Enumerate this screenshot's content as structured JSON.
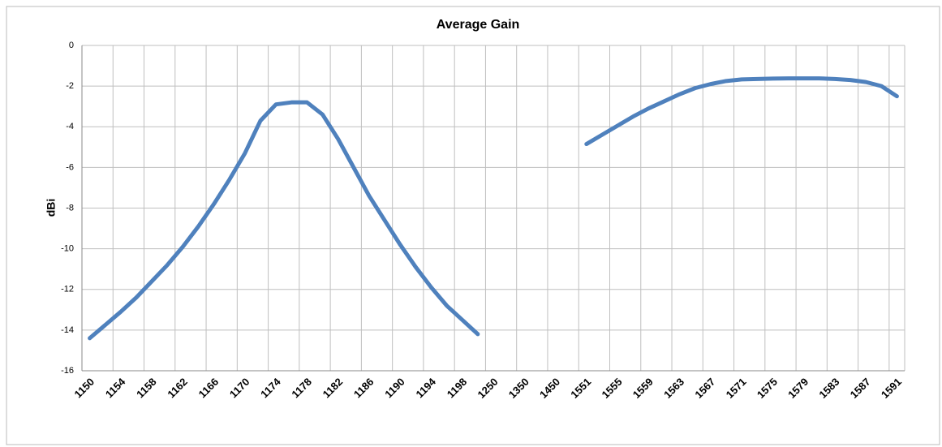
{
  "chart_data": {
    "type": "line",
    "title": "Average Gain",
    "y_label": "dBi",
    "categories": [
      "1150",
      null,
      "1154",
      null,
      "1158",
      null,
      "1162",
      null,
      "1166",
      null,
      "1170",
      null,
      "1174",
      null,
      "1178",
      null,
      "1182",
      null,
      "1186",
      null,
      "1190",
      null,
      "1194",
      null,
      "1198",
      null,
      "1250",
      null,
      "1350",
      null,
      "1450",
      null,
      "1551",
      null,
      "1555",
      null,
      "1559",
      null,
      "1563",
      null,
      "1567",
      null,
      "1571",
      null,
      "1575",
      null,
      "1579",
      null,
      "1583",
      null,
      "1587",
      null,
      "1591"
    ],
    "series": [
      {
        "name": "Average Gain",
        "color": "#4f81bd",
        "values": [
          -14.4,
          -13.75,
          -13.1,
          -12.4,
          -11.6,
          -10.8,
          -9.9,
          -8.9,
          -7.8,
          -6.6,
          -5.3,
          -3.7,
          -2.9,
          -2.8,
          -2.8,
          -3.4,
          -4.6,
          -6.0,
          -7.4,
          -8.6,
          -9.8,
          -10.9,
          -11.9,
          -12.8,
          -13.5,
          -14.2,
          null,
          null,
          null,
          null,
          null,
          null,
          -4.85,
          -4.4,
          -3.95,
          -3.5,
          -3.1,
          -2.75,
          -2.4,
          -2.1,
          -1.9,
          -1.75,
          -1.67,
          -1.65,
          -1.63,
          -1.62,
          -1.62,
          -1.62,
          -1.65,
          -1.7,
          -1.8,
          -2.0,
          -2.5
        ]
      }
    ],
    "ylim": [
      -16,
      0
    ],
    "yticks": [
      -16,
      -14,
      -12,
      -10,
      -8,
      -6,
      -4,
      -2,
      0
    ],
    "grid": true
  }
}
